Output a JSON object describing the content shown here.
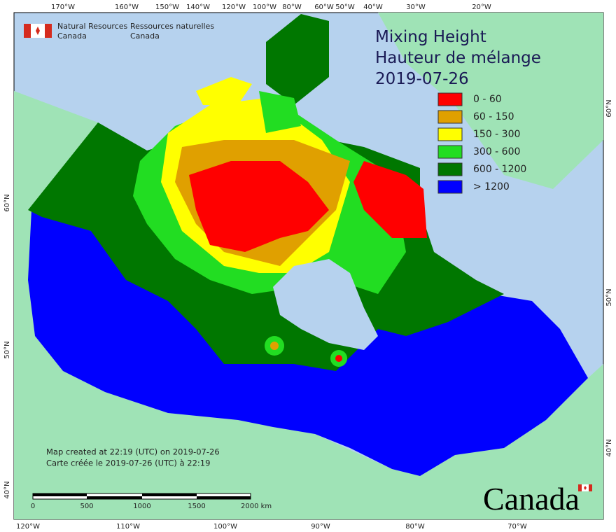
{
  "header": {
    "organization_en": [
      "Natural Resources",
      "Canada"
    ],
    "organization_fr": [
      "Ressources naturelles",
      "Canada"
    ]
  },
  "title": [
    "Mixing Height",
    "Hauteur de mélange",
    "2019-07-26"
  ],
  "legend": [
    {
      "label": "0 - 60",
      "color": "#ff0000"
    },
    {
      "label": "60 - 150",
      "color": "#e0a000"
    },
    {
      "label": "150 - 300",
      "color": "#ffff00"
    },
    {
      "label": "300 - 600",
      "color": "#22dd22"
    },
    {
      "label": "600 - 1200",
      "color": "#007700"
    },
    {
      "label": "> 1200",
      "color": "#0000ff"
    }
  ],
  "graticule": {
    "top": [
      "170°W",
      "160°W",
      "150°W",
      "140°W",
      "120°W",
      "100°W",
      "80°W",
      "60°W",
      "50°W",
      "40°W",
      "30°W",
      "20°W"
    ],
    "bottom": [
      "120°W",
      "110°W",
      "100°W",
      "90°W",
      "80°W",
      "70°W"
    ],
    "left": [
      "60°N",
      "50°N",
      "40°N"
    ],
    "right": [
      "60°N",
      "50°N",
      "40°N"
    ]
  },
  "notes": [
    "Map created at 22:19 (UTC) on 2019-07-26",
    "Carte créée le 2019-07-26 (UTC) à 22:19"
  ],
  "scale_bar": [
    "0",
    "500",
    "1000",
    "1500",
    "2000 km"
  ],
  "wordmark": "Canada"
}
